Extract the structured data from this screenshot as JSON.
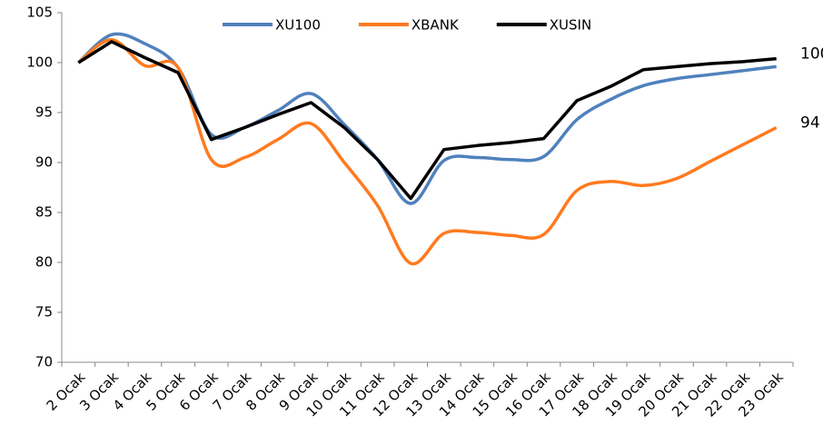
{
  "chart_data": {
    "type": "line",
    "categories": [
      "2 Ocak",
      "3 Ocak",
      "4 Ocak",
      "5 Ocak",
      "6 Ocak",
      "7 Ocak",
      "8 Ocak",
      "9 Ocak",
      "10 Ocak",
      "11 Ocak",
      "12 Ocak",
      "13 Ocak",
      "14 Ocak",
      "15 Ocak",
      "16 Ocak",
      "17 Ocak",
      "18 Ocak",
      "19 Ocak",
      "20 Ocak",
      "21 Ocak",
      "22 Ocak",
      "23 Ocak"
    ],
    "series": [
      {
        "name": "XU100",
        "color": "#4f81bd",
        "smooth": true,
        "values": [
          100,
          102.8,
          101.9,
          99.5,
          92.8,
          93.5,
          95.2,
          96.9,
          93.8,
          90.3,
          85.9,
          90.2,
          90.5,
          90.3,
          90.6,
          94.3,
          96.3,
          97.7,
          98.4,
          98.8,
          99.2,
          99.6
        ]
      },
      {
        "name": "XBANK",
        "color": "#ff7a1f",
        "smooth": true,
        "values": [
          100,
          102.3,
          99.7,
          99.5,
          90.3,
          90.5,
          92.3,
          93.9,
          90,
          85.7,
          79.9,
          82.9,
          83,
          82.7,
          82.8,
          87.2,
          88.1,
          87.7,
          88.4,
          90.1,
          91.8,
          93.5
        ]
      },
      {
        "name": "XUSIN",
        "color": "#000000",
        "smooth": false,
        "values": [
          100,
          102.1,
          100.5,
          99,
          92.3,
          93.5,
          94.8,
          96,
          93.5,
          90.3,
          86.4,
          91.3,
          91.7,
          92,
          92.4,
          96.2,
          97.6,
          99.3,
          99.6,
          99.9,
          100.1,
          100.4
        ]
      }
    ],
    "annotations": [
      "100",
      "94"
    ],
    "ylim": [
      70,
      105
    ],
    "yticks": [
      70,
      75,
      80,
      85,
      90,
      95,
      100,
      105
    ],
    "legend": "top"
  }
}
